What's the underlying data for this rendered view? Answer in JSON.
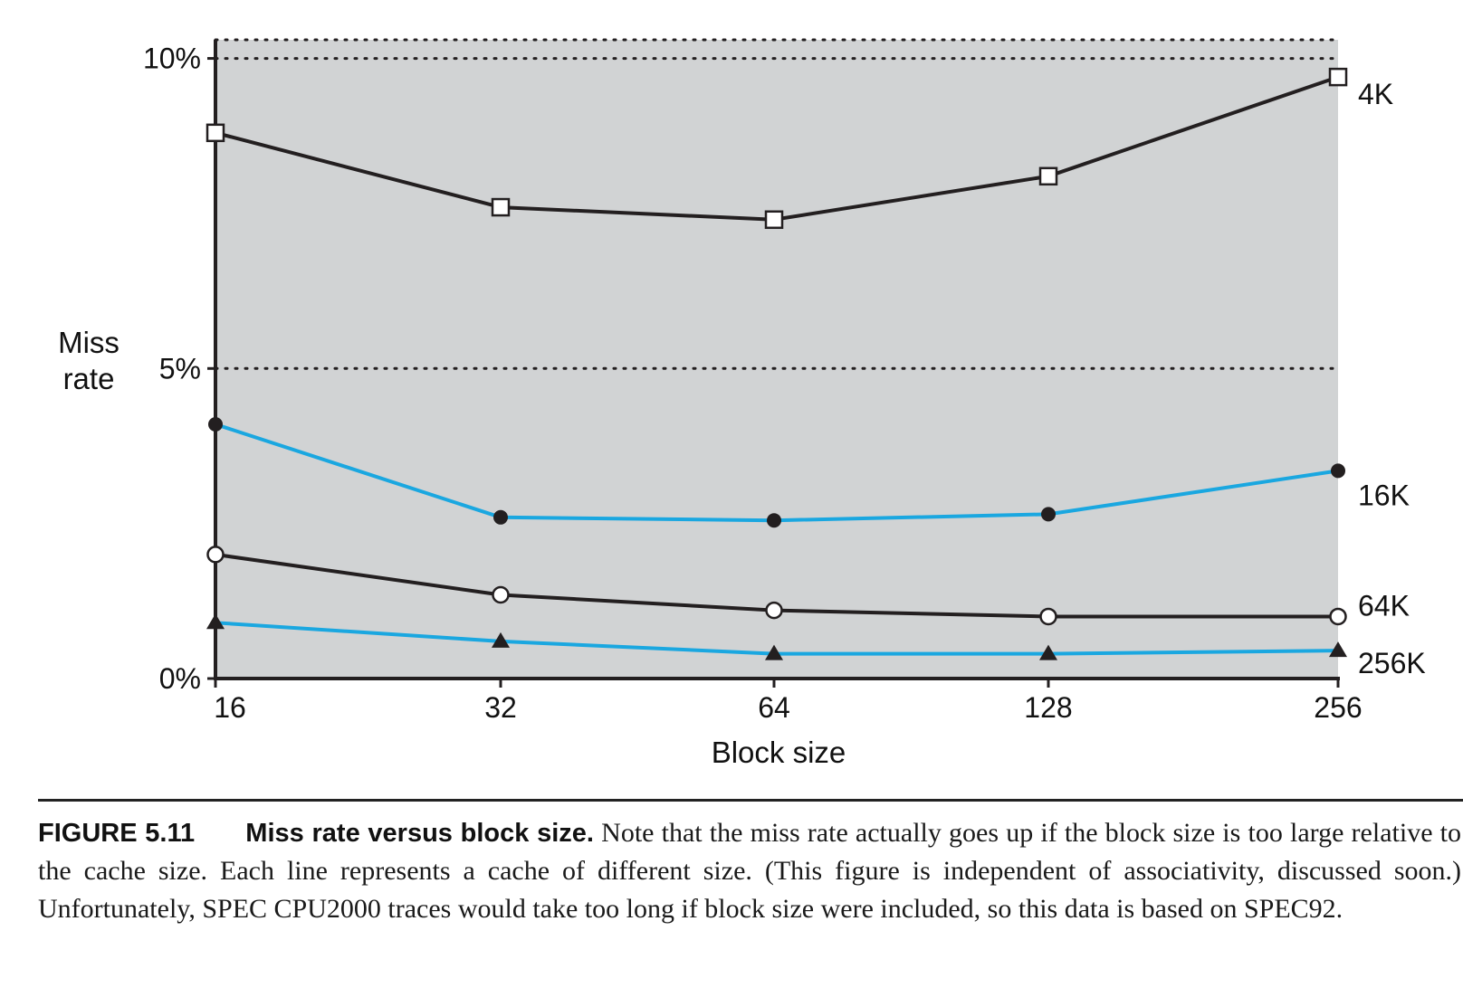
{
  "chart_data": {
    "type": "line",
    "xlabel": "Block size",
    "ylabel_lines": [
      "Miss",
      "rate"
    ],
    "x_categories": [
      "16",
      "32",
      "64",
      "128",
      "256"
    ],
    "y_ticks": [
      "0%",
      "5%",
      "10%"
    ],
    "ylim": [
      0,
      10.3
    ],
    "y_unit": "%",
    "grid": "dotted horizontal at 5% and 10%",
    "plot_background": "#d1d3d4",
    "series": [
      {
        "name": "4K",
        "color": "#231f20",
        "marker": "open-square",
        "values": [
          8.8,
          7.6,
          7.4,
          8.1,
          9.7
        ]
      },
      {
        "name": "16K",
        "color": "#1aa7e0",
        "marker": "filled-circle",
        "values": [
          4.1,
          2.6,
          2.55,
          2.65,
          3.35
        ]
      },
      {
        "name": "64K",
        "color": "#231f20",
        "marker": "open-circle",
        "values": [
          2.0,
          1.35,
          1.1,
          1.0,
          1.0
        ]
      },
      {
        "name": "256K",
        "color": "#1aa7e0",
        "marker": "filled-triangle",
        "values": [
          0.9,
          0.6,
          0.4,
          0.4,
          0.45
        ]
      }
    ]
  },
  "caption": {
    "number": "FIGURE 5.11",
    "title": "Miss rate versus block size.",
    "text": "Note that the miss rate actually goes up if the block size is too large relative to the cache size. Each line represents a cache of different size. (This figure is independent of associativity, discussed soon.) Unfortunately, SPEC CPU2000 traces would take too long if block size were included, so this data is based on SPEC92."
  }
}
